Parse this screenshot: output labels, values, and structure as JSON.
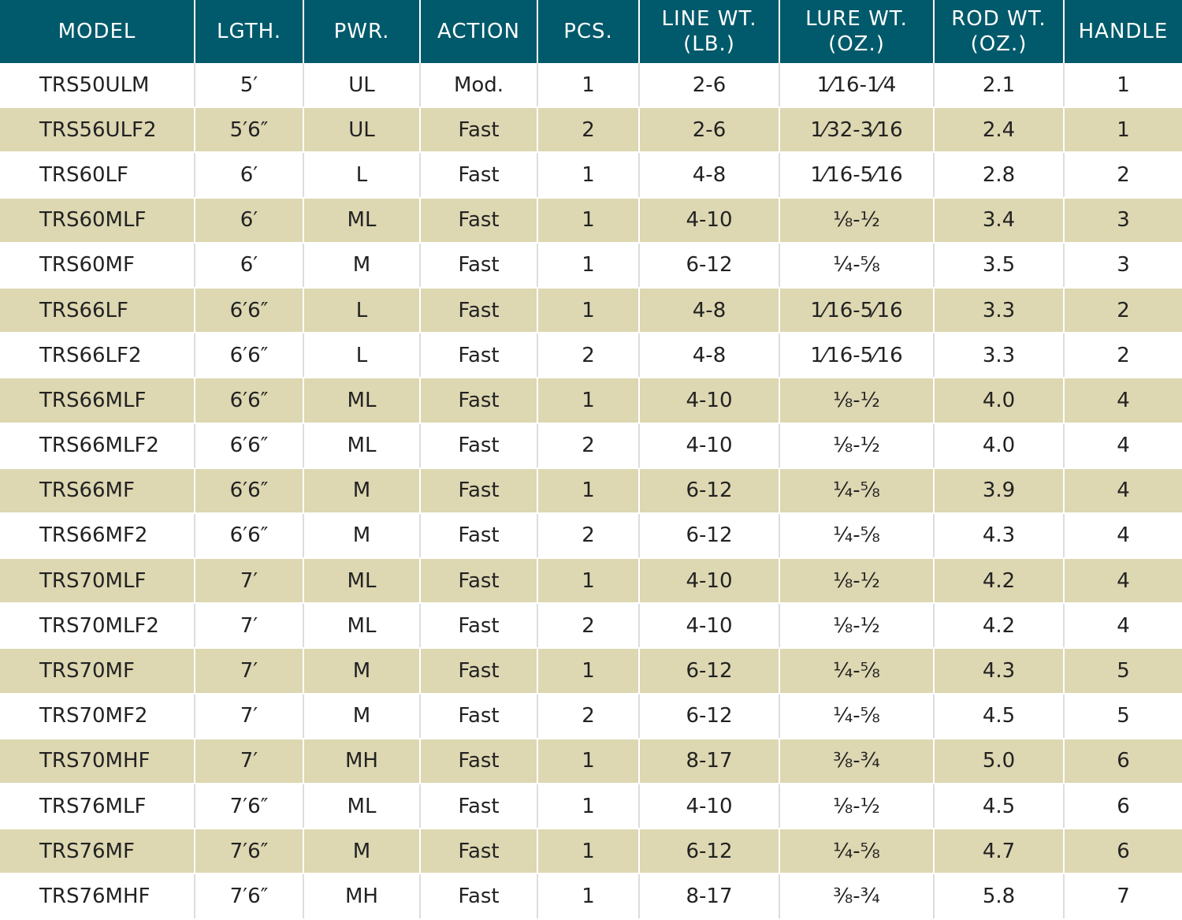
{
  "table": {
    "headers": [
      [
        "MODEL"
      ],
      [
        "LGTH."
      ],
      [
        "PWR."
      ],
      [
        "ACTION"
      ],
      [
        "PCS."
      ],
      [
        "LINE WT.",
        "(LB.)"
      ],
      [
        "LURE WT.",
        "(OZ.)"
      ],
      [
        "ROD WT.",
        "(OZ.)"
      ],
      [
        "HANDLE"
      ]
    ],
    "rows": [
      [
        "TRS50ULM",
        "5′",
        "UL",
        "Mod.",
        "1",
        "2-6",
        "1⁄16-1⁄4",
        "2.1",
        "1"
      ],
      [
        "TRS56ULF2",
        "5′6″",
        "UL",
        "Fast",
        "2",
        "2-6",
        "1⁄32-3⁄16",
        "2.4",
        "1"
      ],
      [
        "TRS60LF",
        "6′",
        "L",
        "Fast",
        "1",
        "4-8",
        "1⁄16-5⁄16",
        "2.8",
        "2"
      ],
      [
        "TRS60MLF",
        "6′",
        "ML",
        "Fast",
        "1",
        "4-10",
        "⅛-½",
        "3.4",
        "3"
      ],
      [
        "TRS60MF",
        "6′",
        "M",
        "Fast",
        "1",
        "6-12",
        "¼-⅝",
        "3.5",
        "3"
      ],
      [
        "TRS66LF",
        "6′6″",
        "L",
        "Fast",
        "1",
        "4-8",
        "1⁄16-5⁄16",
        "3.3",
        "2"
      ],
      [
        "TRS66LF2",
        "6′6″",
        "L",
        "Fast",
        "2",
        "4-8",
        "1⁄16-5⁄16",
        "3.3",
        "2"
      ],
      [
        "TRS66MLF",
        "6′6″",
        "ML",
        "Fast",
        "1",
        "4-10",
        "⅛-½",
        "4.0",
        "4"
      ],
      [
        "TRS66MLF2",
        "6′6″",
        "ML",
        "Fast",
        "2",
        "4-10",
        "⅛-½",
        "4.0",
        "4"
      ],
      [
        "TRS66MF",
        "6′6″",
        "M",
        "Fast",
        "1",
        "6-12",
        "¼-⅝",
        "3.9",
        "4"
      ],
      [
        "TRS66MF2",
        "6′6″",
        "M",
        "Fast",
        "2",
        "6-12",
        "¼-⅝",
        "4.3",
        "4"
      ],
      [
        "TRS70MLF",
        "7′",
        "ML",
        "Fast",
        "1",
        "4-10",
        "⅛-½",
        "4.2",
        "4"
      ],
      [
        "TRS70MLF2",
        "7′",
        "ML",
        "Fast",
        "2",
        "4-10",
        "⅛-½",
        "4.2",
        "4"
      ],
      [
        "TRS70MF",
        "7′",
        "M",
        "Fast",
        "1",
        "6-12",
        "¼-⅝",
        "4.3",
        "5"
      ],
      [
        "TRS70MF2",
        "7′",
        "M",
        "Fast",
        "2",
        "6-12",
        "¼-⅝",
        "4.5",
        "5"
      ],
      [
        "TRS70MHF",
        "7′",
        "MH",
        "Fast",
        "1",
        "8-17",
        "⅜-¾",
        "5.0",
        "6"
      ],
      [
        "TRS76MLF",
        "7′6″",
        "ML",
        "Fast",
        "1",
        "4-10",
        "⅛-½",
        "4.5",
        "6"
      ],
      [
        "TRS76MF",
        "7′6″",
        "M",
        "Fast",
        "1",
        "6-12",
        "¼-⅝",
        "4.7",
        "6"
      ],
      [
        "TRS76MHF",
        "7′6″",
        "MH",
        "Fast",
        "1",
        "8-17",
        "⅜-¾",
        "5.8",
        "7"
      ]
    ]
  }
}
